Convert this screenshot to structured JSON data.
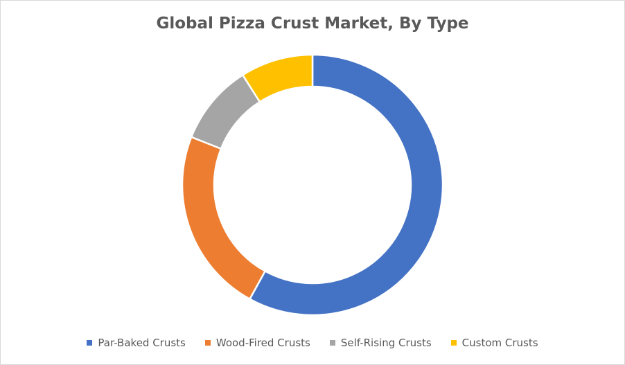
{
  "chart_data": {
    "type": "pie",
    "subtype": "donut",
    "title": "Global Pizza Crust Market, By Type",
    "legend_position": "bottom",
    "slices": [
      {
        "label": "Par-Baked Crusts",
        "value": 58,
        "color": "#4472C4"
      },
      {
        "label": "Wood-Fired Crusts",
        "value": 23,
        "color": "#ED7D31"
      },
      {
        "label": "Self-Rising Crusts",
        "value": 10,
        "color": "#A5A5A5"
      },
      {
        "label": "Custom Crusts",
        "value": 9,
        "color": "#FFC000"
      }
    ]
  }
}
